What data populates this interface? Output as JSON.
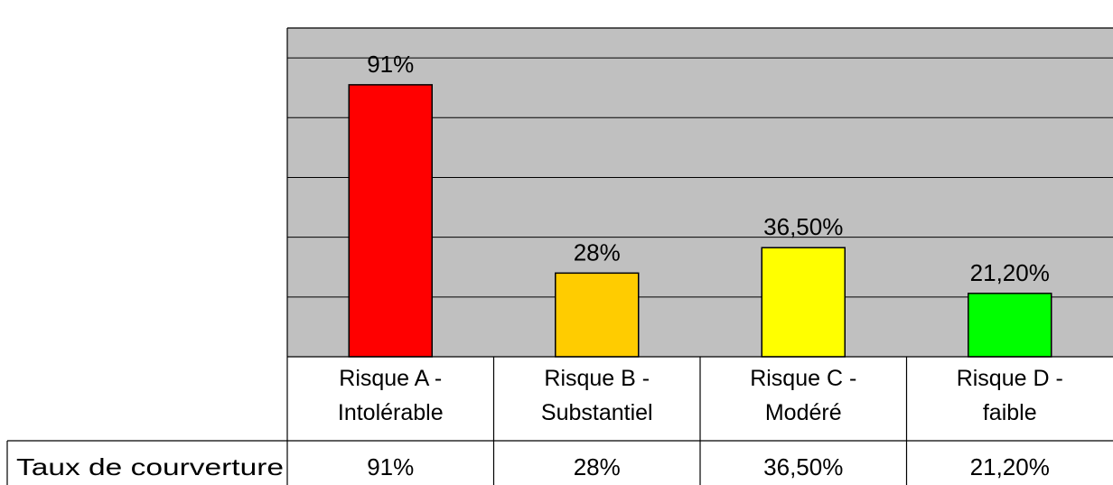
{
  "chart_data": {
    "type": "bar",
    "categories": [
      "Risque A - Intolérable",
      "Risque B - Substantiel",
      "Risque C - Modéré",
      "Risque D - faible"
    ],
    "category_lines": [
      [
        "Risque A -",
        "Intolérable"
      ],
      [
        "Risque B -",
        "Substantiel"
      ],
      [
        "Risque C -",
        "Modéré"
      ],
      [
        "Risque D -",
        "faible"
      ]
    ],
    "series": [
      {
        "name": "Taux de courverture",
        "values": [
          0.91,
          0.28,
          0.365,
          0.212
        ],
        "value_labels": [
          "91%",
          "28%",
          "36,50%",
          "21,20%"
        ]
      }
    ],
    "bar_colors": [
      "#ff0000",
      "#ffcc00",
      "#ffff00",
      "#00ff00"
    ],
    "plot_background": "#c0c0c0",
    "grid": true,
    "ylim": [
      0,
      1.1
    ],
    "legend": "none",
    "data_table": true
  }
}
